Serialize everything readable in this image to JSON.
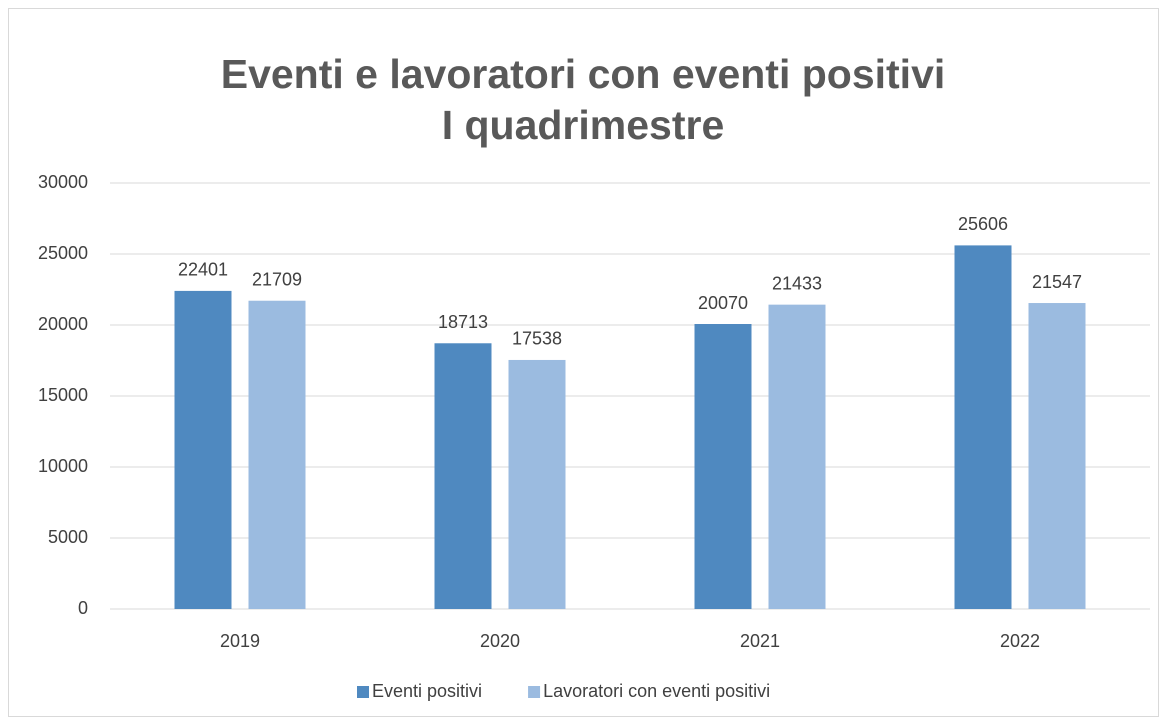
{
  "chart_data": {
    "type": "bar",
    "title": [
      "Eventi e lavoratori con eventi positivi",
      "I quadrimestre"
    ],
    "categories": [
      "2019",
      "2020",
      "2021",
      "2022"
    ],
    "series": [
      {
        "name": "Eventi positivi",
        "color": "#4f89c0",
        "values": [
          22401,
          18713,
          20070,
          25606
        ]
      },
      {
        "name": "Lavoratori con eventi positivi",
        "color": "#9bbbe0",
        "values": [
          21709,
          17538,
          21433,
          21547
        ]
      }
    ],
    "ylim": [
      0,
      30000
    ],
    "yticks": [
      0,
      5000,
      10000,
      15000,
      20000,
      25000,
      30000
    ],
    "grid": true,
    "legend": "bottom"
  }
}
